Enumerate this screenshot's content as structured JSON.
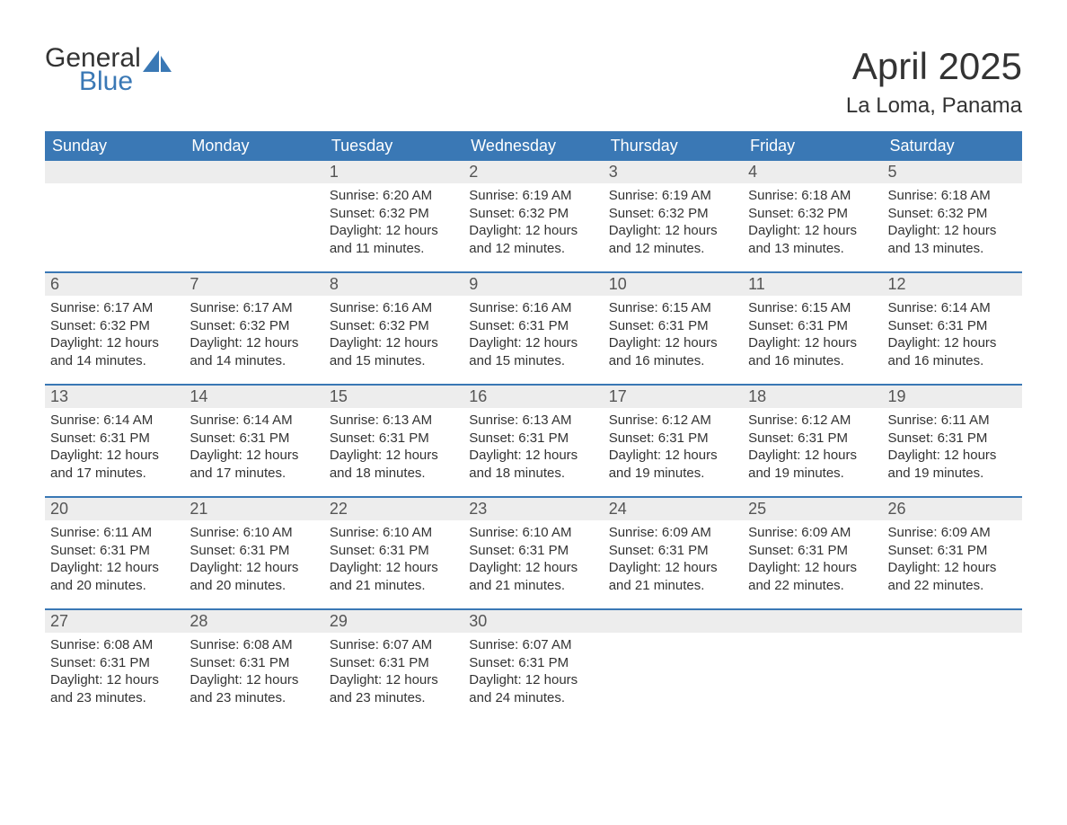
{
  "logo": {
    "text_general": "General",
    "text_blue": "Blue",
    "icon_color": "#3a78b5"
  },
  "title": "April 2025",
  "location": "La Loma, Panama",
  "colors": {
    "header_bg": "#3a78b5",
    "header_text": "#ffffff",
    "daynum_bg": "#ededed",
    "week_border": "#3a78b5",
    "body_text": "#333333",
    "daynum_text": "#555555",
    "page_bg": "#ffffff"
  },
  "fonts": {
    "title_size": 42,
    "location_size": 24,
    "dow_size": 18,
    "daynum_size": 18,
    "body_size": 15
  },
  "days_of_week": [
    "Sunday",
    "Monday",
    "Tuesday",
    "Wednesday",
    "Thursday",
    "Friday",
    "Saturday"
  ],
  "weeks": [
    [
      {
        "num": "",
        "sunrise": "",
        "sunset": "",
        "daylight": ""
      },
      {
        "num": "",
        "sunrise": "",
        "sunset": "",
        "daylight": ""
      },
      {
        "num": "1",
        "sunrise": "Sunrise: 6:20 AM",
        "sunset": "Sunset: 6:32 PM",
        "daylight": "Daylight: 12 hours and 11 minutes."
      },
      {
        "num": "2",
        "sunrise": "Sunrise: 6:19 AM",
        "sunset": "Sunset: 6:32 PM",
        "daylight": "Daylight: 12 hours and 12 minutes."
      },
      {
        "num": "3",
        "sunrise": "Sunrise: 6:19 AM",
        "sunset": "Sunset: 6:32 PM",
        "daylight": "Daylight: 12 hours and 12 minutes."
      },
      {
        "num": "4",
        "sunrise": "Sunrise: 6:18 AM",
        "sunset": "Sunset: 6:32 PM",
        "daylight": "Daylight: 12 hours and 13 minutes."
      },
      {
        "num": "5",
        "sunrise": "Sunrise: 6:18 AM",
        "sunset": "Sunset: 6:32 PM",
        "daylight": "Daylight: 12 hours and 13 minutes."
      }
    ],
    [
      {
        "num": "6",
        "sunrise": "Sunrise: 6:17 AM",
        "sunset": "Sunset: 6:32 PM",
        "daylight": "Daylight: 12 hours and 14 minutes."
      },
      {
        "num": "7",
        "sunrise": "Sunrise: 6:17 AM",
        "sunset": "Sunset: 6:32 PM",
        "daylight": "Daylight: 12 hours and 14 minutes."
      },
      {
        "num": "8",
        "sunrise": "Sunrise: 6:16 AM",
        "sunset": "Sunset: 6:32 PM",
        "daylight": "Daylight: 12 hours and 15 minutes."
      },
      {
        "num": "9",
        "sunrise": "Sunrise: 6:16 AM",
        "sunset": "Sunset: 6:31 PM",
        "daylight": "Daylight: 12 hours and 15 minutes."
      },
      {
        "num": "10",
        "sunrise": "Sunrise: 6:15 AM",
        "sunset": "Sunset: 6:31 PM",
        "daylight": "Daylight: 12 hours and 16 minutes."
      },
      {
        "num": "11",
        "sunrise": "Sunrise: 6:15 AM",
        "sunset": "Sunset: 6:31 PM",
        "daylight": "Daylight: 12 hours and 16 minutes."
      },
      {
        "num": "12",
        "sunrise": "Sunrise: 6:14 AM",
        "sunset": "Sunset: 6:31 PM",
        "daylight": "Daylight: 12 hours and 16 minutes."
      }
    ],
    [
      {
        "num": "13",
        "sunrise": "Sunrise: 6:14 AM",
        "sunset": "Sunset: 6:31 PM",
        "daylight": "Daylight: 12 hours and 17 minutes."
      },
      {
        "num": "14",
        "sunrise": "Sunrise: 6:14 AM",
        "sunset": "Sunset: 6:31 PM",
        "daylight": "Daylight: 12 hours and 17 minutes."
      },
      {
        "num": "15",
        "sunrise": "Sunrise: 6:13 AM",
        "sunset": "Sunset: 6:31 PM",
        "daylight": "Daylight: 12 hours and 18 minutes."
      },
      {
        "num": "16",
        "sunrise": "Sunrise: 6:13 AM",
        "sunset": "Sunset: 6:31 PM",
        "daylight": "Daylight: 12 hours and 18 minutes."
      },
      {
        "num": "17",
        "sunrise": "Sunrise: 6:12 AM",
        "sunset": "Sunset: 6:31 PM",
        "daylight": "Daylight: 12 hours and 19 minutes."
      },
      {
        "num": "18",
        "sunrise": "Sunrise: 6:12 AM",
        "sunset": "Sunset: 6:31 PM",
        "daylight": "Daylight: 12 hours and 19 minutes."
      },
      {
        "num": "19",
        "sunrise": "Sunrise: 6:11 AM",
        "sunset": "Sunset: 6:31 PM",
        "daylight": "Daylight: 12 hours and 19 minutes."
      }
    ],
    [
      {
        "num": "20",
        "sunrise": "Sunrise: 6:11 AM",
        "sunset": "Sunset: 6:31 PM",
        "daylight": "Daylight: 12 hours and 20 minutes."
      },
      {
        "num": "21",
        "sunrise": "Sunrise: 6:10 AM",
        "sunset": "Sunset: 6:31 PM",
        "daylight": "Daylight: 12 hours and 20 minutes."
      },
      {
        "num": "22",
        "sunrise": "Sunrise: 6:10 AM",
        "sunset": "Sunset: 6:31 PM",
        "daylight": "Daylight: 12 hours and 21 minutes."
      },
      {
        "num": "23",
        "sunrise": "Sunrise: 6:10 AM",
        "sunset": "Sunset: 6:31 PM",
        "daylight": "Daylight: 12 hours and 21 minutes."
      },
      {
        "num": "24",
        "sunrise": "Sunrise: 6:09 AM",
        "sunset": "Sunset: 6:31 PM",
        "daylight": "Daylight: 12 hours and 21 minutes."
      },
      {
        "num": "25",
        "sunrise": "Sunrise: 6:09 AM",
        "sunset": "Sunset: 6:31 PM",
        "daylight": "Daylight: 12 hours and 22 minutes."
      },
      {
        "num": "26",
        "sunrise": "Sunrise: 6:09 AM",
        "sunset": "Sunset: 6:31 PM",
        "daylight": "Daylight: 12 hours and 22 minutes."
      }
    ],
    [
      {
        "num": "27",
        "sunrise": "Sunrise: 6:08 AM",
        "sunset": "Sunset: 6:31 PM",
        "daylight": "Daylight: 12 hours and 23 minutes."
      },
      {
        "num": "28",
        "sunrise": "Sunrise: 6:08 AM",
        "sunset": "Sunset: 6:31 PM",
        "daylight": "Daylight: 12 hours and 23 minutes."
      },
      {
        "num": "29",
        "sunrise": "Sunrise: 6:07 AM",
        "sunset": "Sunset: 6:31 PM",
        "daylight": "Daylight: 12 hours and 23 minutes."
      },
      {
        "num": "30",
        "sunrise": "Sunrise: 6:07 AM",
        "sunset": "Sunset: 6:31 PM",
        "daylight": "Daylight: 12 hours and 24 minutes."
      },
      {
        "num": "",
        "sunrise": "",
        "sunset": "",
        "daylight": ""
      },
      {
        "num": "",
        "sunrise": "",
        "sunset": "",
        "daylight": ""
      },
      {
        "num": "",
        "sunrise": "",
        "sunset": "",
        "daylight": ""
      }
    ]
  ]
}
